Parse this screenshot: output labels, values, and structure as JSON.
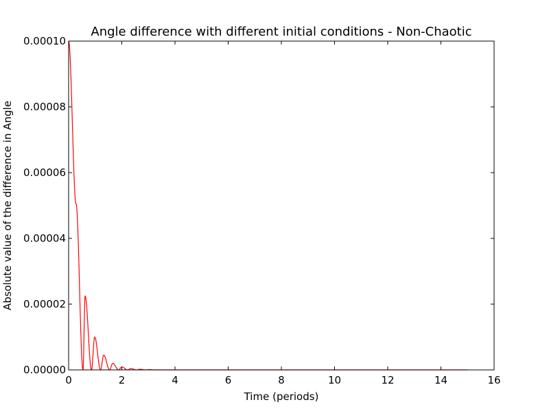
{
  "chart_data": {
    "type": "line",
    "title": "Angle difference with different initial conditions - Non-Chaotic",
    "xlabel": "Time (periods)",
    "ylabel": "Absolute value of  the difference in Angle",
    "xlim": [
      0,
      16
    ],
    "ylim": [
      0,
      0.0001
    ],
    "x_ticks": [
      "0",
      "2",
      "4",
      "6",
      "8",
      "10",
      "12",
      "14",
      "16"
    ],
    "y_ticks": [
      "0.00000",
      "0.00002",
      "0.00004",
      "0.00006",
      "0.00008",
      "0.00010"
    ],
    "grid": false,
    "legend": "none",
    "series": [
      {
        "color": "#ff0000",
        "x": [
          0,
          0.28,
          0.54,
          0.62,
          0.86,
          0.98,
          1.2,
          1.32,
          1.54,
          1.66,
          1.88,
          2.0,
          2.22,
          2.34,
          2.56,
          2.68,
          2.9,
          3.02,
          3.24,
          15.0
        ],
        "y": [
          0.0001,
          5.05e-05,
          0,
          2.25e-05,
          0,
          1e-05,
          0,
          4.5e-06,
          0,
          2e-06,
          0,
          9e-07,
          0,
          4e-07,
          0,
          2e-07,
          0,
          1e-07,
          0,
          0
        ]
      }
    ]
  }
}
